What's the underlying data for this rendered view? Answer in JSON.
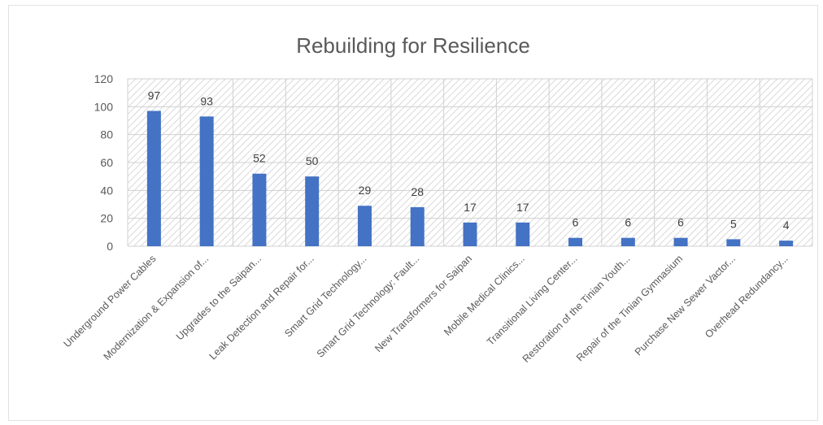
{
  "chart_data": {
    "type": "bar",
    "title": "Rebuilding for Resilience",
    "xlabel": "",
    "ylabel": "",
    "ylim": [
      0,
      120
    ],
    "yticks": [
      0,
      20,
      40,
      60,
      80,
      100,
      120
    ],
    "grid": true,
    "legend": "none",
    "bar_color": "#4472c4",
    "categories": [
      "Underground Power Cables",
      "Modernization & Expansion of...",
      "Upgrades to the Saipan...",
      "Leak Detection and Repair for...",
      "Smart Grid Technology...",
      "Smart Grid Technology: Fault...",
      "New Transformers for Saipan",
      "Mobile Medical Clinics...",
      "Transitional Living Center...",
      "Restoration of the Tinian Youth...",
      "Repair of the Tinian Gymnasium",
      "Purchase New Sewer Vactor...",
      "Overhead Redundancy..."
    ],
    "values": [
      97,
      93,
      52,
      50,
      29,
      28,
      17,
      17,
      6,
      6,
      6,
      5,
      4
    ]
  }
}
